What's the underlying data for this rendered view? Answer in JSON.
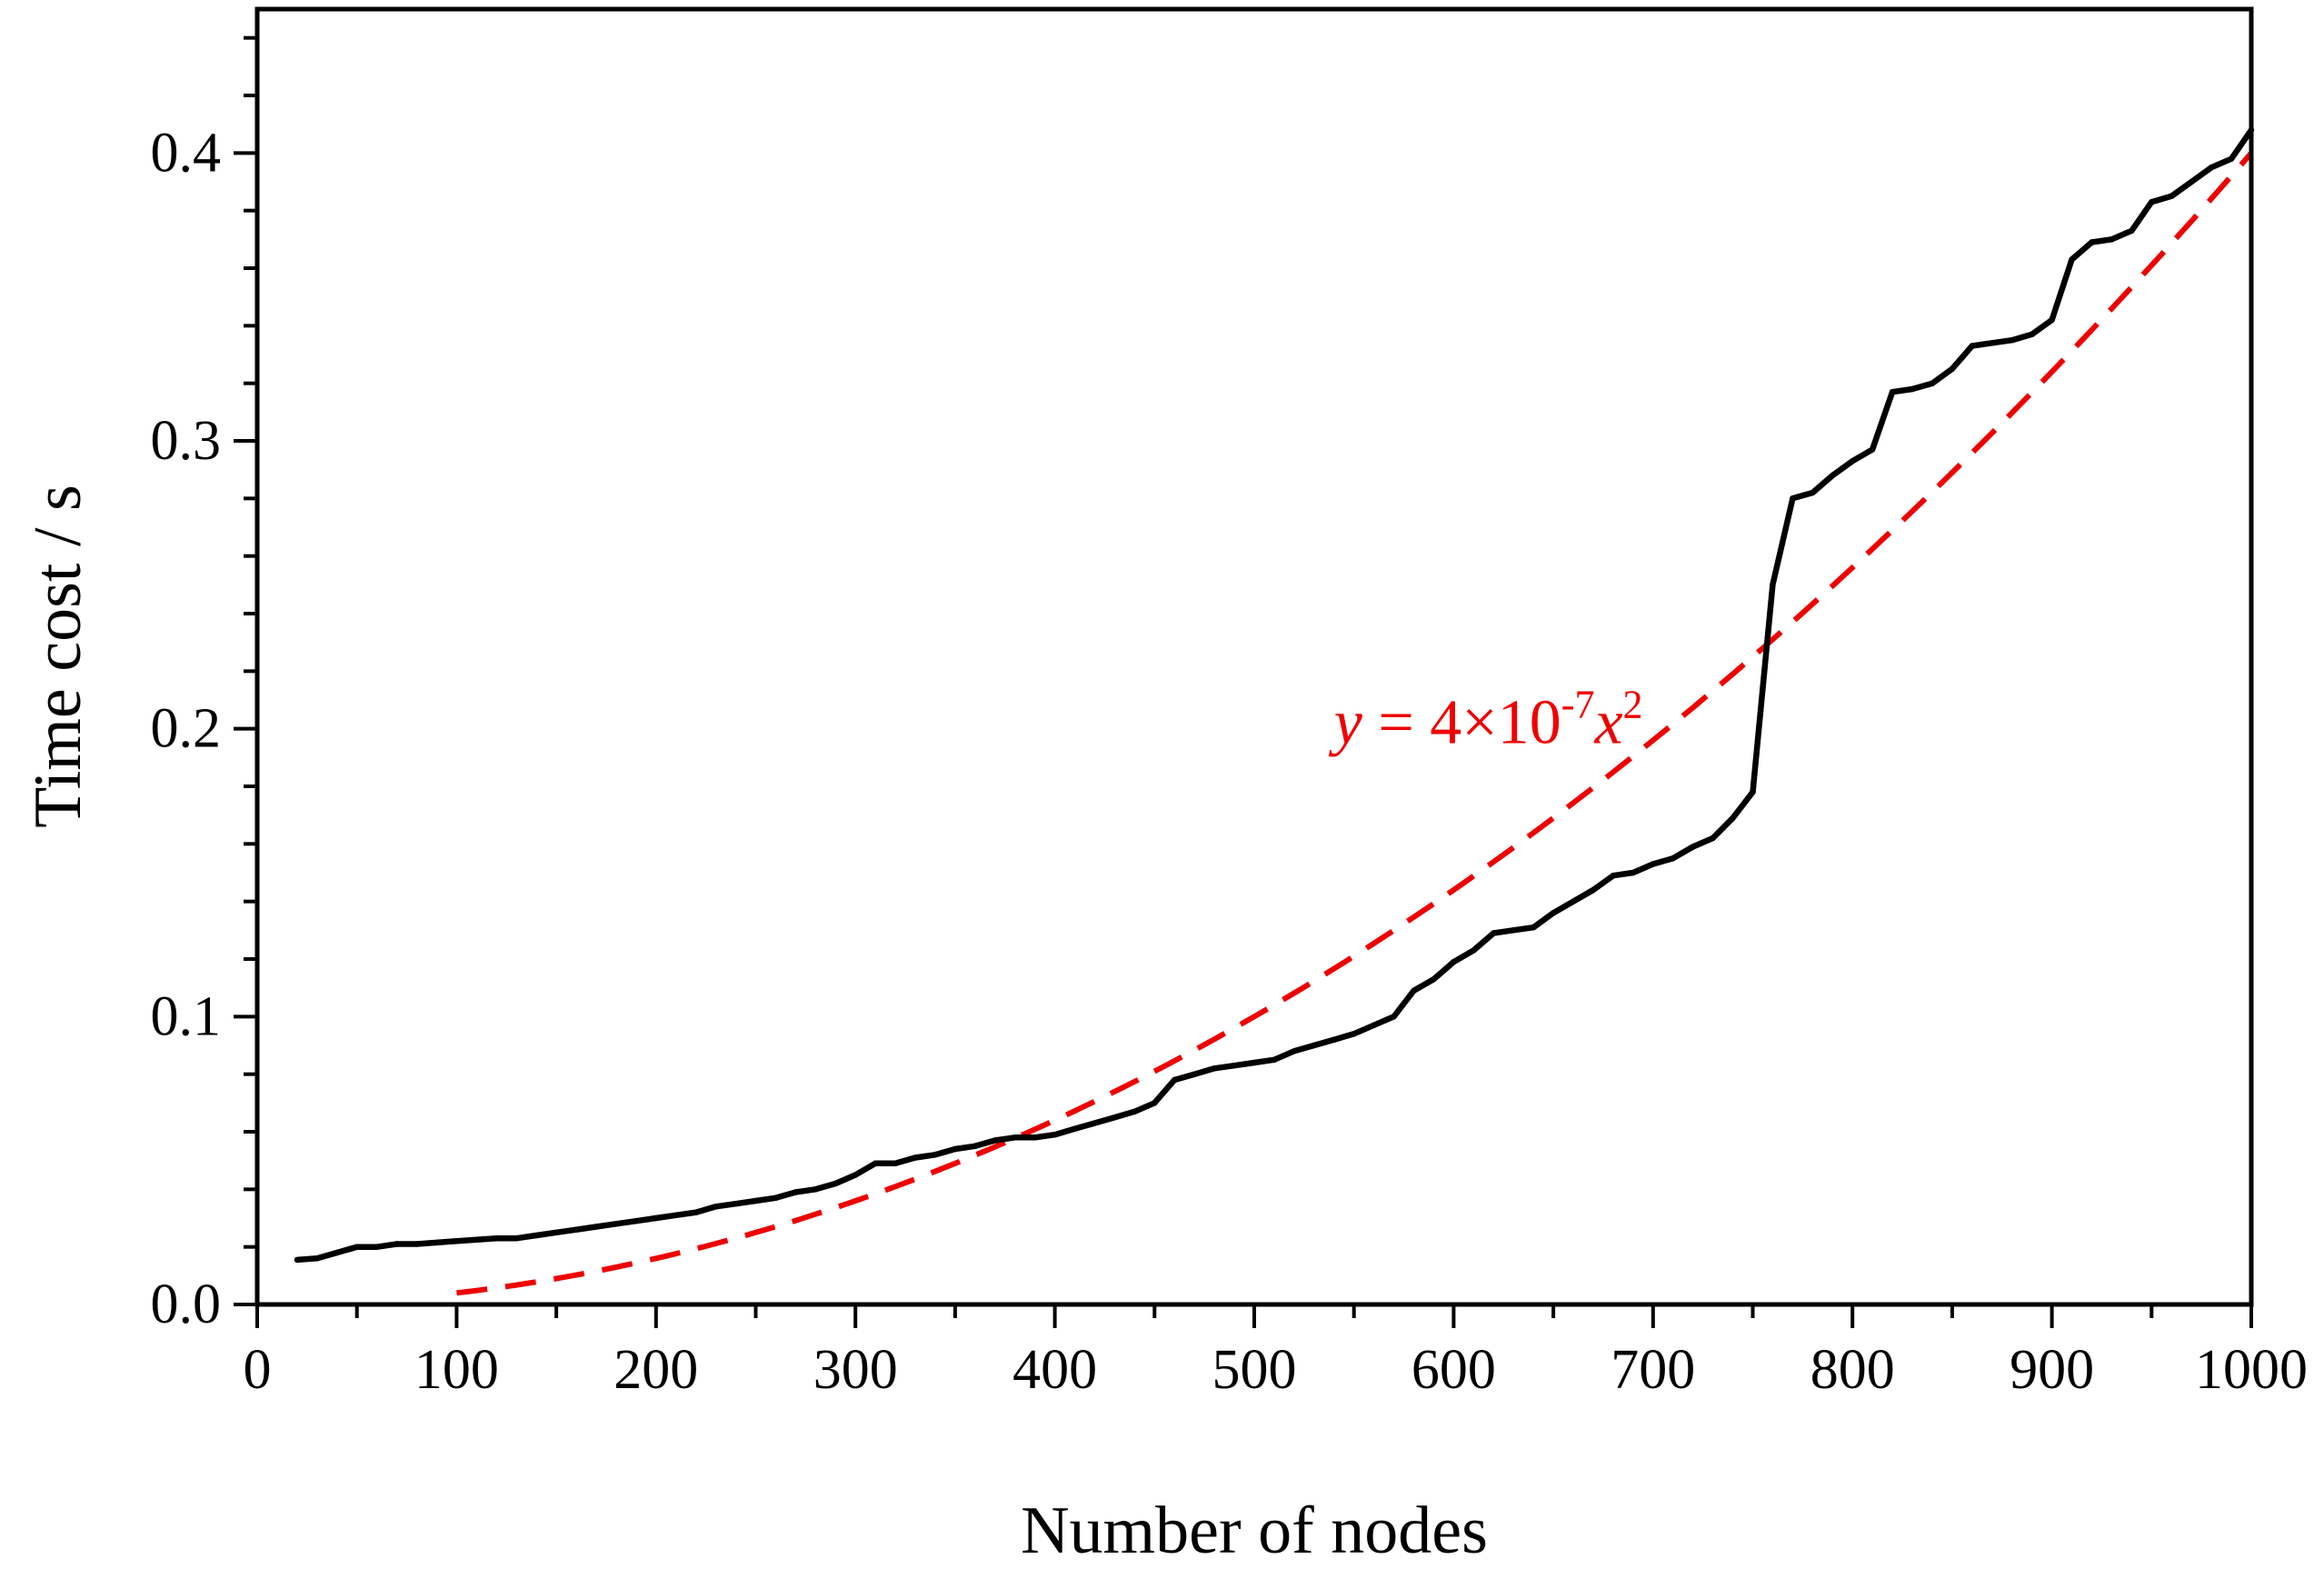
{
  "chart_data": {
    "type": "line",
    "title": "",
    "xlabel": "Number of nodes",
    "ylabel": "Time cost / s",
    "xlim": [
      0,
      1000
    ],
    "ylim": [
      0,
      0.45
    ],
    "x_ticks": [
      0,
      100,
      200,
      300,
      400,
      500,
      600,
      700,
      800,
      900,
      1000
    ],
    "x_tick_labels": [
      "0",
      "100",
      "200",
      "300",
      "400",
      "500",
      "600",
      "700",
      "800",
      "900",
      "1000"
    ],
    "y_ticks": [
      0.0,
      0.1,
      0.2,
      0.3,
      0.4
    ],
    "y_tick_labels": [
      "0.0",
      "0.1",
      "0.2",
      "0.3",
      "0.4"
    ],
    "grid": false,
    "series": [
      {
        "name": "Time cost",
        "color": "#000000",
        "style": "solid",
        "x": [
          20,
          30,
          40,
          50,
          60,
          70,
          80,
          90,
          100,
          110,
          120,
          130,
          140,
          150,
          160,
          170,
          180,
          190,
          200,
          210,
          220,
          230,
          240,
          250,
          260,
          270,
          280,
          290,
          300,
          310,
          320,
          330,
          340,
          350,
          360,
          370,
          380,
          390,
          400,
          410,
          420,
          430,
          440,
          450,
          460,
          470,
          480,
          490,
          500,
          510,
          520,
          530,
          540,
          550,
          560,
          570,
          580,
          590,
          600,
          610,
          620,
          630,
          640,
          650,
          660,
          670,
          680,
          690,
          700,
          710,
          720,
          730,
          740,
          750,
          760,
          770,
          780,
          790,
          800,
          810,
          820,
          830,
          840,
          850,
          860,
          870,
          880,
          890,
          900,
          910,
          920,
          930,
          940,
          950,
          960,
          970,
          980,
          990,
          1000
        ],
        "y": [
          0.0155,
          0.016,
          0.018,
          0.02,
          0.02,
          0.021,
          0.021,
          0.0215,
          0.022,
          0.0225,
          0.023,
          0.023,
          0.024,
          0.025,
          0.026,
          0.027,
          0.028,
          0.029,
          0.03,
          0.031,
          0.032,
          0.034,
          0.035,
          0.036,
          0.037,
          0.039,
          0.04,
          0.042,
          0.045,
          0.049,
          0.049,
          0.051,
          0.052,
          0.054,
          0.055,
          0.057,
          0.058,
          0.058,
          0.059,
          0.061,
          0.063,
          0.065,
          0.067,
          0.07,
          0.078,
          0.08,
          0.082,
          0.083,
          0.084,
          0.085,
          0.088,
          0.09,
          0.092,
          0.094,
          0.097,
          0.1,
          0.109,
          0.113,
          0.119,
          0.123,
          0.129,
          0.13,
          0.131,
          0.136,
          0.14,
          0.144,
          0.149,
          0.15,
          0.153,
          0.155,
          0.159,
          0.162,
          0.169,
          0.178,
          0.25,
          0.28,
          0.282,
          0.288,
          0.293,
          0.297,
          0.317,
          0.318,
          0.32,
          0.325,
          0.333,
          0.334,
          0.335,
          0.337,
          0.342,
          0.363,
          0.369,
          0.37,
          0.373,
          0.383,
          0.385,
          0.39,
          0.395,
          0.398,
          0.408
        ]
      },
      {
        "name": "Fit y = 4×10^-7 x^2",
        "color": "#ee0000",
        "style": "dashed",
        "function": "4e-7 * x^2",
        "x_start": 100,
        "x_end": 1000
      }
    ],
    "annotations": [
      {
        "id": "fit-equation",
        "color": "#ee0000",
        "parts": {
          "y": "y",
          "eq": " = 4×10",
          "exp": "-7",
          "x": "x",
          "pow": "2"
        },
        "at": [
          540,
          0.195
        ]
      }
    ]
  }
}
